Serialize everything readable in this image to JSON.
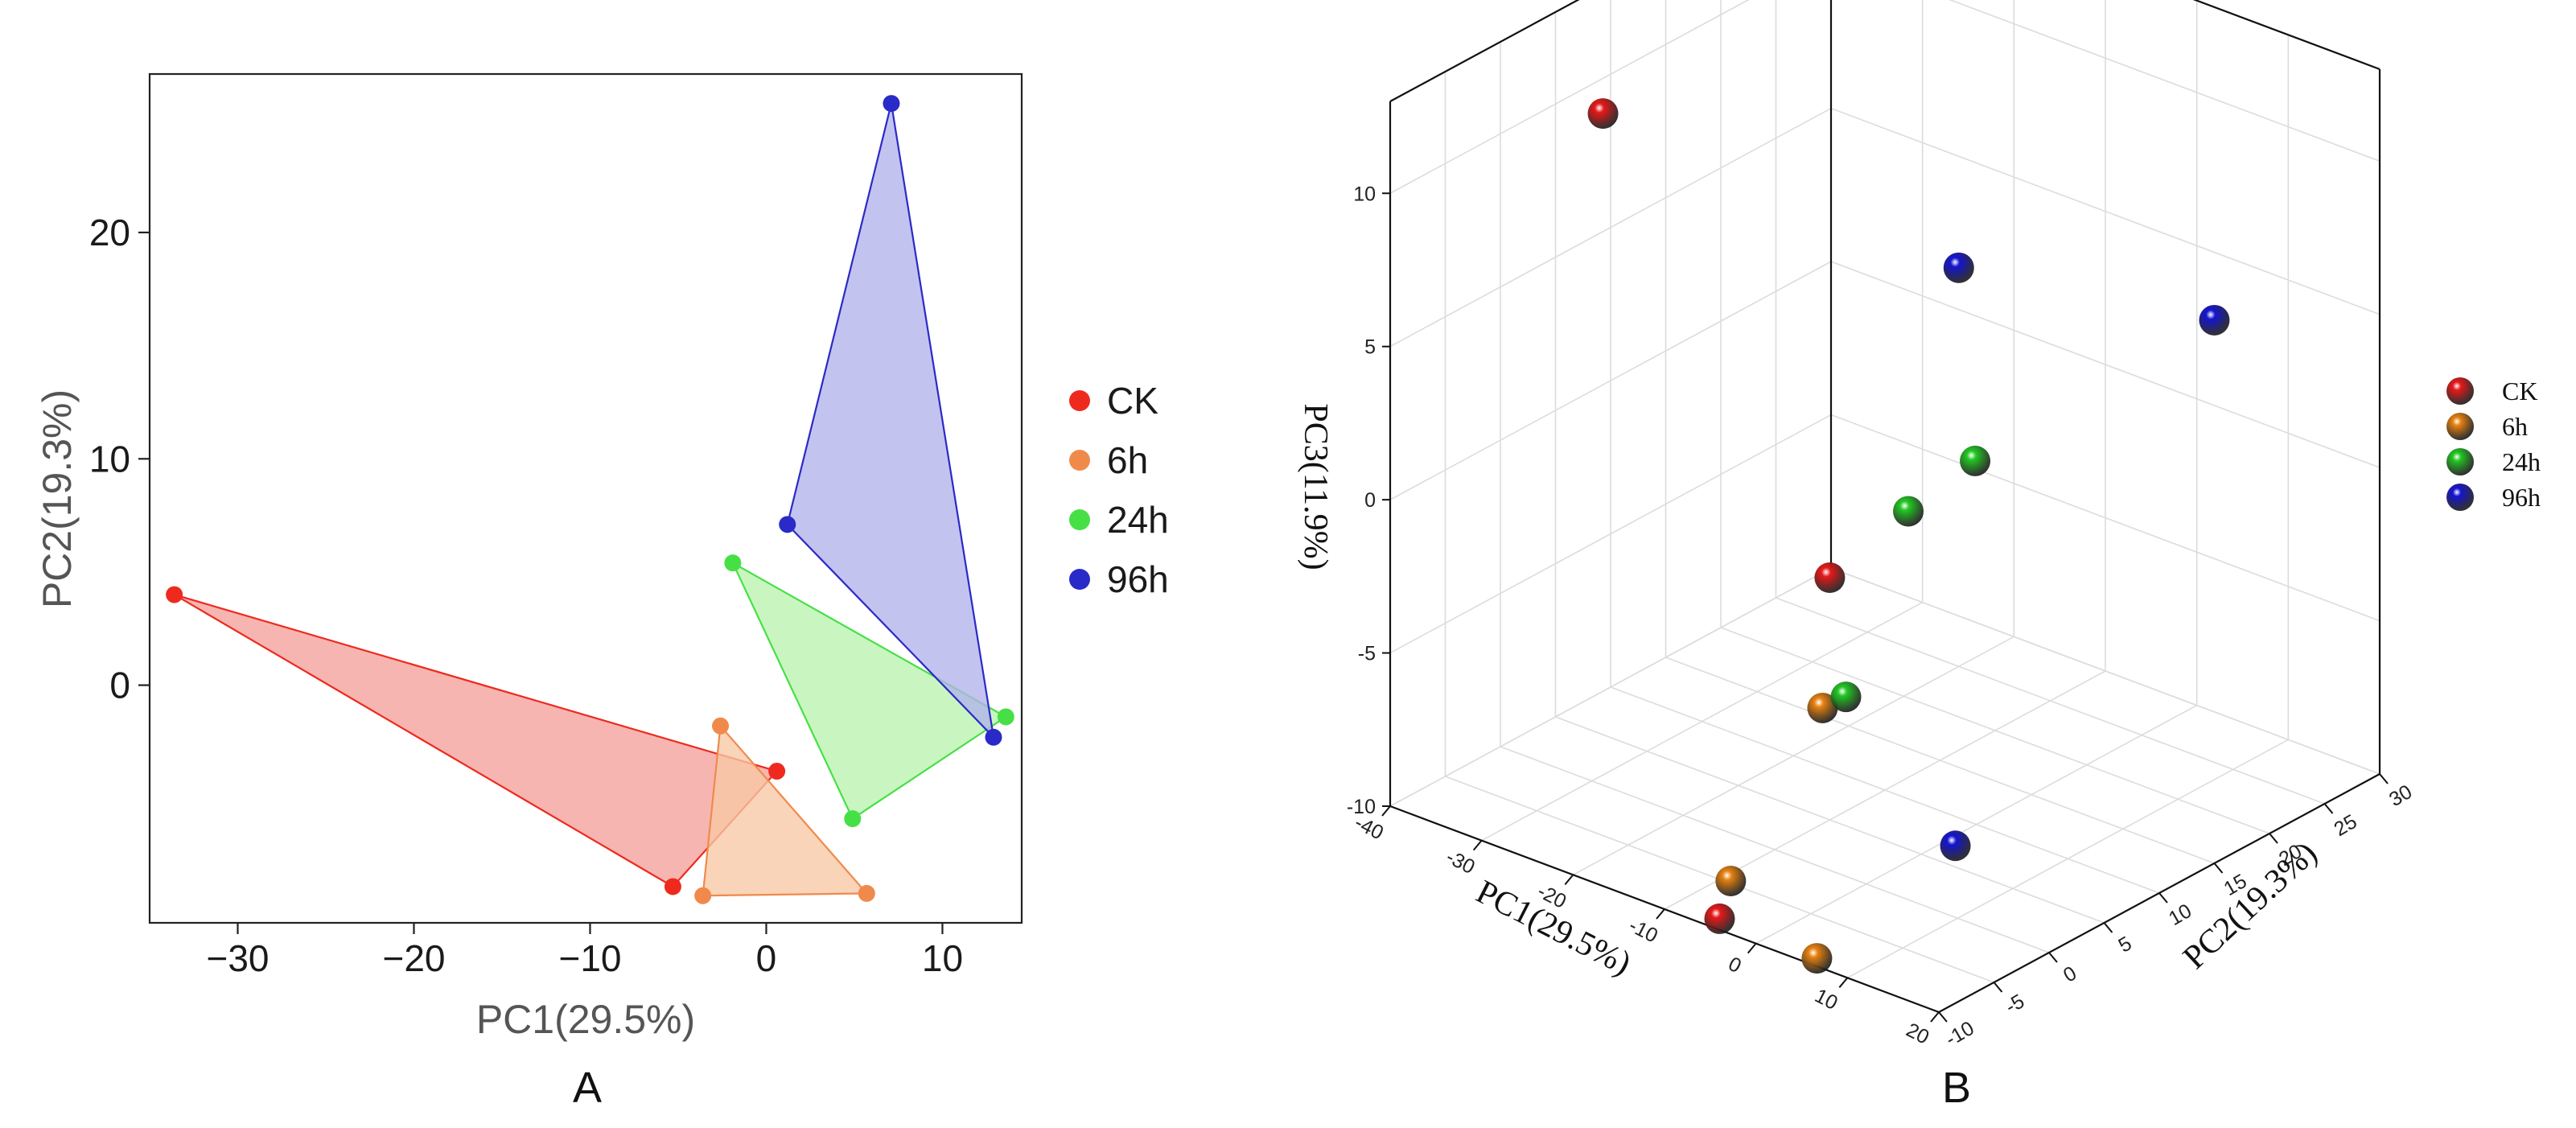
{
  "chart_data": [
    {
      "panel": "A",
      "type": "scatter",
      "subtype": "2d-pca-convex-hull",
      "xlabel": "PC1(29.5%)",
      "ylabel": "PC2(19.3%)",
      "xlim": [
        -35,
        14.5
      ],
      "ylim": [
        -10.5,
        27
      ],
      "xticks": [
        -30,
        -20,
        -10,
        0,
        10
      ],
      "yticks": [
        0,
        10,
        20
      ],
      "legend_position": "right",
      "series": [
        {
          "name": "CK",
          "color": "#ee2a1e",
          "fill": "#f3a09b",
          "points": [
            [
              -33.6,
              4.0
            ],
            [
              0.6,
              -3.8
            ],
            [
              -5.3,
              -8.9
            ]
          ]
        },
        {
          "name": "6h",
          "color": "#f08a4b",
          "fill": "#f7c8a5",
          "points": [
            [
              -2.6,
              -1.8
            ],
            [
              5.7,
              -9.2
            ],
            [
              -3.6,
              -9.3
            ]
          ]
        },
        {
          "name": "24h",
          "color": "#46e046",
          "fill": "#baf4ae",
          "points": [
            [
              -1.9,
              5.4
            ],
            [
              13.6,
              -1.4
            ],
            [
              4.9,
              -5.9
            ]
          ]
        },
        {
          "name": "96h",
          "color": "#2a2ac8",
          "fill": "#b2b2ea",
          "points": [
            [
              7.1,
              25.7
            ],
            [
              12.9,
              -2.3
            ],
            [
              1.2,
              7.1
            ]
          ]
        }
      ]
    },
    {
      "panel": "B",
      "type": "scatter",
      "subtype": "3d-pca",
      "xlabel": "PC1(29.5%)",
      "ylabel": "PC2(19.3%)",
      "zlabel": "PC3(11.9%)",
      "xlim": [
        -40,
        20
      ],
      "ylim": [
        -10,
        30
      ],
      "zlim": [
        -10,
        13
      ],
      "xticks": [
        -40,
        -30,
        -20,
        -10,
        0,
        10,
        20
      ],
      "yticks": [
        -10,
        -5,
        0,
        5,
        10,
        15,
        20,
        25,
        30
      ],
      "zticks": [
        -10,
        -5,
        0,
        5,
        10
      ],
      "legend_position": "right",
      "series": [
        {
          "name": "CK",
          "color": "#e81818",
          "points": [
            [
              -33.6,
              4.0,
              10.6
            ],
            [
              0.6,
              -3.8,
              0.8
            ],
            [
              -5.3,
              -8.9,
              -10.0
            ]
          ]
        },
        {
          "name": "6h",
          "color": "#e8820f",
          "points": [
            [
              -2.6,
              -1.8,
              -4.2
            ],
            [
              -3.6,
              -9.3,
              -8.5
            ],
            [
              5.7,
              -9.2,
              -10.0
            ]
          ]
        },
        {
          "name": "24h",
          "color": "#22c822",
          "points": [
            [
              -1.9,
              5.4,
              0.9
            ],
            [
              13.6,
              -1.4,
              5.6
            ],
            [
              4.9,
              -5.9,
              -2.2
            ]
          ]
        },
        {
          "name": "96h",
          "color": "#1414d2",
          "points": [
            [
              7.1,
              25.7,
              4.2
            ],
            [
              12.9,
              -2.3,
              12.0
            ],
            [
              1.2,
              7.1,
              -10.0
            ]
          ]
        }
      ]
    }
  ],
  "panel_labels": {
    "a": "A",
    "b": "B"
  }
}
